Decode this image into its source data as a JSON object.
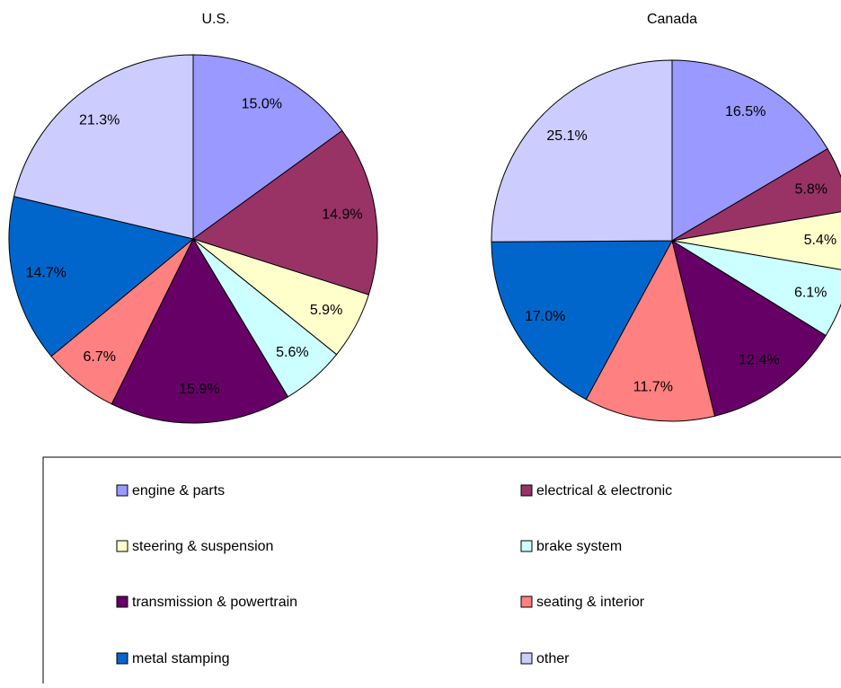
{
  "chart_data": [
    {
      "type": "pie",
      "title": "U.S.",
      "categories": [
        "engine & parts",
        "electrical & electronic",
        "steering & suspension",
        "brake system",
        "transmission & powertrain",
        "seating & interior",
        "metal stamping",
        "other"
      ],
      "values": [
        15.0,
        14.9,
        5.9,
        5.6,
        15.9,
        6.7,
        14.7,
        21.3
      ],
      "value_labels": [
        "15.0%",
        "14.9%",
        "5.9%",
        "5.6%",
        "15.9%",
        "6.7%",
        "14.7%",
        "21.3%"
      ],
      "colors": [
        "#9999ff",
        "#993366",
        "#ffffcc",
        "#ccffff",
        "#660066",
        "#ff8080",
        "#0066cc",
        "#ccccff"
      ]
    },
    {
      "type": "pie",
      "title": "Canada",
      "categories": [
        "engine & parts",
        "electrical & electronic",
        "steering & suspension",
        "brake system",
        "transmission & powertrain",
        "seating & interior",
        "metal stamping",
        "other"
      ],
      "values": [
        16.5,
        5.8,
        5.4,
        6.1,
        12.4,
        11.7,
        17.0,
        25.1
      ],
      "value_labels": [
        "16.5%",
        "5.8%",
        "5.4%",
        "6.1%",
        "12.4%",
        "11.7%",
        "17.0%",
        "25.1%"
      ],
      "colors": [
        "#9999ff",
        "#993366",
        "#ffffcc",
        "#ccffff",
        "#660066",
        "#ff8080",
        "#0066cc",
        "#ccccff"
      ]
    }
  ]
}
